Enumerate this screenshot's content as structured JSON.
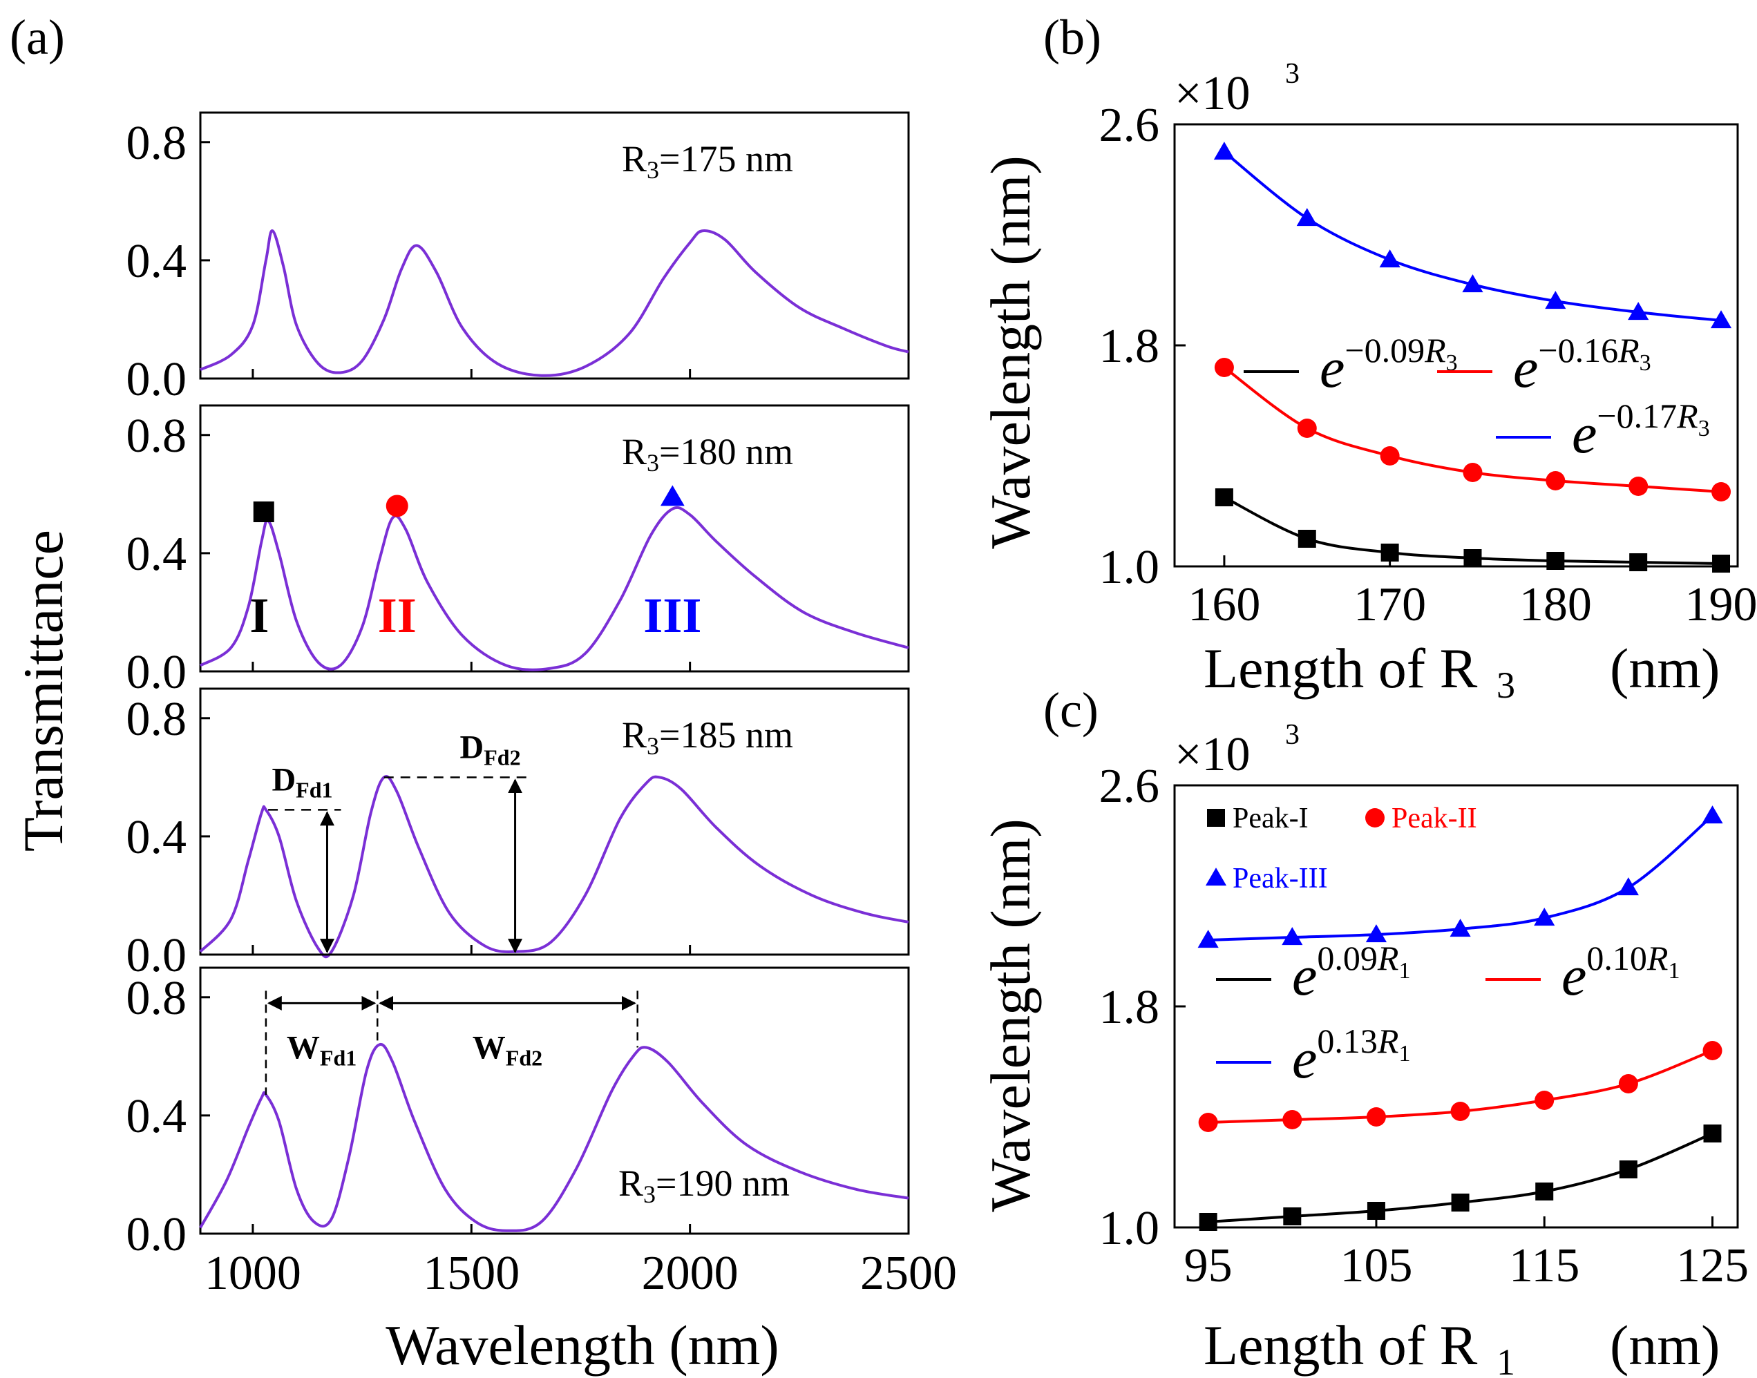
{
  "figure": {
    "panel_labels": [
      "(a)",
      "(b)",
      "(c)"
    ],
    "multiplier": {
      "base": "×10",
      "exp": "3"
    }
  },
  "chart_data": [
    {
      "id": "a",
      "type": "line",
      "xlabel": "Wavelength (nm)",
      "ylabel": "Transmittance",
      "xlim": [
        880,
        2500
      ],
      "ylim": [
        0,
        0.9
      ],
      "xticks": [
        1000,
        1500,
        2000,
        2500
      ],
      "xtick_labels": [
        "1000",
        "1500",
        "2000",
        "2500"
      ],
      "yticks": [
        0,
        0.4,
        0.8
      ],
      "ytick_labels": [
        "0.0",
        "0.4",
        "0.8"
      ],
      "line_color": "#7a2fd6",
      "subplots": [
        {
          "label": "R3=175 nm",
          "label_main": "R",
          "label_sub": "3",
          "label_rest": "=175 nm",
          "peaks": [
            [
              1045,
              0.5,
              48
            ],
            [
              1375,
              0.45,
              62
            ],
            [
              2030,
              0.5,
              150
            ]
          ],
          "baseline": [
            0.05,
            0.02
          ],
          "x": [
            880,
            950,
            1000,
            1030,
            1045,
            1070,
            1100,
            1150,
            1200,
            1250,
            1300,
            1340,
            1375,
            1420,
            1480,
            1560,
            1660,
            1760,
            1860,
            1940,
            2000,
            2030,
            2080,
            2150,
            2250,
            2350,
            2450,
            2500
          ],
          "y": [
            0.03,
            0.08,
            0.18,
            0.4,
            0.5,
            0.38,
            0.18,
            0.05,
            0.02,
            0.06,
            0.2,
            0.37,
            0.45,
            0.36,
            0.17,
            0.05,
            0.01,
            0.04,
            0.15,
            0.34,
            0.46,
            0.5,
            0.47,
            0.36,
            0.24,
            0.17,
            0.11,
            0.09
          ]
        },
        {
          "label": "R3=180 nm",
          "label_main": "R",
          "label_sub": "3",
          "label_rest": "=180 nm",
          "x": [
            880,
            950,
            990,
            1020,
            1035,
            1060,
            1100,
            1150,
            1200,
            1250,
            1290,
            1320,
            1350,
            1400,
            1480,
            1580,
            1680,
            1760,
            1840,
            1910,
            1960,
            2000,
            2060,
            2150,
            2260,
            2380,
            2500
          ],
          "y": [
            0.02,
            0.08,
            0.22,
            0.44,
            0.51,
            0.4,
            0.17,
            0.03,
            0.02,
            0.15,
            0.38,
            0.52,
            0.48,
            0.3,
            0.12,
            0.02,
            0.01,
            0.06,
            0.24,
            0.46,
            0.55,
            0.53,
            0.44,
            0.32,
            0.2,
            0.13,
            0.08
          ]
        },
        {
          "label": "R3=185 nm",
          "label_main": "R",
          "label_sub": "3",
          "label_rest": "=185 nm",
          "x": [
            880,
            950,
            990,
            1020,
            1030,
            1060,
            1100,
            1150,
            1180,
            1230,
            1270,
            1300,
            1330,
            1380,
            1450,
            1530,
            1600,
            1680,
            1760,
            1840,
            1900,
            1930,
            1980,
            2060,
            2160,
            2280,
            2400,
            2500
          ],
          "y": [
            0.01,
            0.12,
            0.32,
            0.48,
            0.49,
            0.4,
            0.18,
            0.02,
            0.01,
            0.2,
            0.48,
            0.6,
            0.55,
            0.36,
            0.14,
            0.03,
            0.01,
            0.04,
            0.2,
            0.46,
            0.58,
            0.6,
            0.56,
            0.43,
            0.3,
            0.2,
            0.14,
            0.11
          ]
        },
        {
          "label": "R3=190 nm",
          "label_main": "R",
          "label_sub": "3",
          "label_rest": "=190 nm",
          "x": [
            880,
            940,
            990,
            1020,
            1030,
            1060,
            1100,
            1140,
            1180,
            1220,
            1260,
            1290,
            1320,
            1370,
            1440,
            1510,
            1580,
            1660,
            1740,
            1820,
            1870,
            1900,
            1950,
            2030,
            2130,
            2250,
            2380,
            2500
          ],
          "y": [
            0.02,
            0.18,
            0.36,
            0.46,
            0.47,
            0.38,
            0.15,
            0.04,
            0.05,
            0.26,
            0.55,
            0.64,
            0.58,
            0.38,
            0.15,
            0.04,
            0.01,
            0.04,
            0.22,
            0.48,
            0.6,
            0.63,
            0.58,
            0.44,
            0.3,
            0.21,
            0.15,
            0.12
          ]
        }
      ],
      "markers": [
        {
          "name": "peak-I-marker",
          "shape": "square",
          "x": 1025,
          "y": 0.54,
          "color": "#000000"
        },
        {
          "name": "peak-II-marker",
          "shape": "circle",
          "x": 1330,
          "y": 0.56,
          "color": "#ff0000"
        },
        {
          "name": "peak-III-marker",
          "shape": "triangle",
          "x": 1960,
          "y": 0.59,
          "color": "#0000ff"
        }
      ],
      "peak_labels": [
        {
          "text": "I",
          "x": 1015,
          "y": 0.18,
          "color": "#000000"
        },
        {
          "text": "II",
          "x": 1330,
          "y": 0.18,
          "color": "#ff0000"
        },
        {
          "text": "III",
          "x": 1960,
          "y": 0.18,
          "color": "#0000ff"
        }
      ],
      "dimensions": {
        "D_Fd1": {
          "main": "D",
          "sub": "Fd1",
          "x": 1170,
          "y_top": 0.49,
          "y_bot": 0.0
        },
        "D_Fd2": {
          "main": "D",
          "sub": "Fd2",
          "x": 1600,
          "y_top": 0.6,
          "y_bot": 0.0
        },
        "W_Fd1": {
          "main": "W",
          "sub": "Fd1",
          "x_from": 1030,
          "x_to": 1285,
          "y": 0.78
        },
        "W_Fd2": {
          "main": "W",
          "sub": "Fd2",
          "x_from": 1285,
          "x_to": 1880,
          "y": 0.78
        }
      }
    },
    {
      "id": "b",
      "type": "line+scatter",
      "xlabel_main": "Length of R",
      "xlabel_sub": "3",
      "xlabel_rest": "(nm)",
      "ylabel": "Wavelength (nm)",
      "xlim": [
        157,
        191
      ],
      "ylim": [
        1.0,
        2.6
      ],
      "xticks": [
        160,
        170,
        180,
        190
      ],
      "xtick_labels": [
        "160",
        "170",
        "180",
        "190"
      ],
      "yticks": [
        1.0,
        1.8,
        2.6
      ],
      "ytick_labels": [
        "1.0",
        "1.8",
        "2.6"
      ],
      "x": [
        160,
        165,
        170,
        175,
        180,
        185,
        190
      ],
      "series": [
        {
          "name": "Peak-I",
          "color": "#000000",
          "marker": "square",
          "values": [
            1.25,
            1.1,
            1.05,
            1.03,
            1.02,
            1.015,
            1.01
          ]
        },
        {
          "name": "Peak-II",
          "color": "#ff0000",
          "marker": "circle",
          "values": [
            1.72,
            1.5,
            1.4,
            1.34,
            1.31,
            1.29,
            1.27
          ]
        },
        {
          "name": "Peak-III",
          "color": "#0000ff",
          "marker": "triangle",
          "values": [
            2.5,
            2.26,
            2.11,
            2.02,
            1.96,
            1.92,
            1.89
          ]
        }
      ],
      "fits": [
        {
          "name": "black-fit",
          "color": "#000000",
          "base": "e",
          "exp": "−0.09",
          "var": "R",
          "var_sub": "3"
        },
        {
          "name": "red-fit",
          "color": "#ff0000",
          "base": "e",
          "exp": "−0.16",
          "var": "R",
          "var_sub": "3"
        },
        {
          "name": "blue-fit",
          "color": "#0000ff",
          "base": "e",
          "exp": "−0.17",
          "var": "R",
          "var_sub": "3"
        }
      ]
    },
    {
      "id": "c",
      "type": "line+scatter",
      "xlabel_main": "Length of R",
      "xlabel_sub": "1",
      "xlabel_rest": "(nm)",
      "ylabel": "Wavelength (nm)",
      "xlim": [
        93,
        126.5
      ],
      "ylim": [
        1.0,
        2.6
      ],
      "xticks": [
        95,
        105,
        115,
        125
      ],
      "xtick_labels": [
        "95",
        "105",
        "115",
        "125"
      ],
      "yticks": [
        1.0,
        1.8,
        2.6
      ],
      "ytick_labels": [
        "1.0",
        "1.8",
        "2.6"
      ],
      "x": [
        95,
        100,
        105,
        110,
        115,
        120,
        125
      ],
      "series": [
        {
          "name": "Peak-I",
          "color": "#000000",
          "marker": "square",
          "values": [
            1.02,
            1.04,
            1.06,
            1.09,
            1.13,
            1.21,
            1.34
          ]
        },
        {
          "name": "Peak-II",
          "color": "#ff0000",
          "marker": "circle",
          "values": [
            1.38,
            1.39,
            1.4,
            1.42,
            1.46,
            1.52,
            1.64
          ]
        },
        {
          "name": "Peak-III",
          "color": "#0000ff",
          "marker": "triangle",
          "values": [
            2.04,
            2.05,
            2.06,
            2.08,
            2.12,
            2.23,
            2.49
          ]
        }
      ],
      "legend": [
        {
          "label": "Peak-I",
          "color": "#000000",
          "marker": "square"
        },
        {
          "label": "Peak-II",
          "color": "#ff0000",
          "marker": "circle"
        },
        {
          "label": "Peak-III",
          "color": "#0000ff",
          "marker": "triangle"
        }
      ],
      "fits": [
        {
          "name": "black-fit",
          "color": "#000000",
          "base": "e",
          "exp": "0.09",
          "var": "R",
          "var_sub": "1"
        },
        {
          "name": "red-fit",
          "color": "#ff0000",
          "base": "e",
          "exp": "0.10",
          "var": "R",
          "var_sub": "1"
        },
        {
          "name": "blue-fit",
          "color": "#0000ff",
          "base": "e",
          "exp": "0.13",
          "var": "R",
          "var_sub": "1"
        }
      ]
    }
  ]
}
